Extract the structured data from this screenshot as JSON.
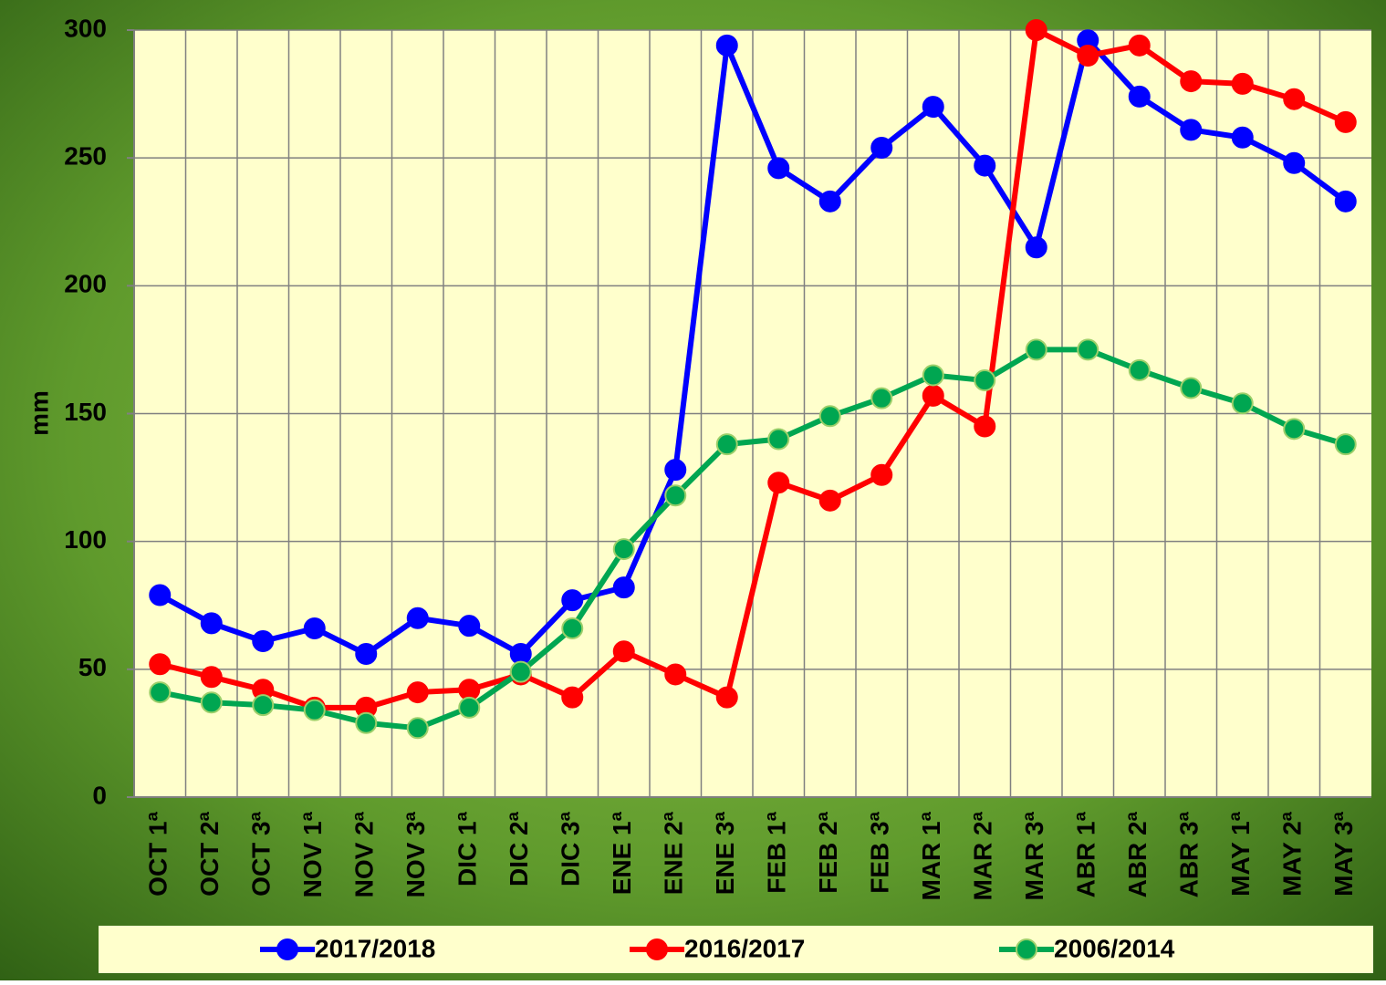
{
  "chart_data": {
    "type": "line",
    "y_label": "mm",
    "categories": [
      "OCT 1ª",
      "OCT 2ª",
      "OCT 3ª",
      "NOV 1ª",
      "NOV 2ª",
      "NOV 3ª",
      "DIC 1ª",
      "DIC 2ª",
      "DIC 3ª",
      "ENE 1ª",
      "ENE 2ª",
      "ENE 3ª",
      "FEB 1ª",
      "FEB 2ª",
      "FEB 3ª",
      "MAR 1ª",
      "MAR 2ª",
      "MAR 3ª",
      "ABR 1ª",
      "ABR 2ª",
      "ABR 3ª",
      "MAY 1ª",
      "MAY 2ª",
      "MAY 3ª"
    ],
    "series": [
      {
        "name": "2017/2018",
        "color": "#0000ff",
        "values": [
          79,
          68,
          61,
          66,
          56,
          70,
          67,
          56,
          77,
          82,
          128,
          294,
          246,
          233,
          254,
          270,
          247,
          215,
          296,
          274,
          261,
          258,
          248,
          233
        ]
      },
      {
        "name": "2016/2017",
        "color": "#ff0000",
        "values": [
          52,
          47,
          42,
          35,
          35,
          41,
          42,
          48,
          39,
          57,
          48,
          39,
          123,
          116,
          126,
          157,
          145,
          300,
          290,
          294,
          280,
          279,
          273,
          264
        ]
      },
      {
        "name": "2006/2014",
        "color": "#00a651",
        "values": [
          41,
          37,
          36,
          34,
          29,
          27,
          35,
          49,
          66,
          97,
          118,
          138,
          140,
          149,
          156,
          165,
          163,
          175,
          175,
          167,
          160,
          154,
          144,
          138
        ]
      }
    ],
    "ylim": [
      0,
      300
    ],
    "yticks": [
      0,
      50,
      100,
      150,
      200,
      250,
      300
    ],
    "grid": true,
    "legend": "bottom"
  }
}
